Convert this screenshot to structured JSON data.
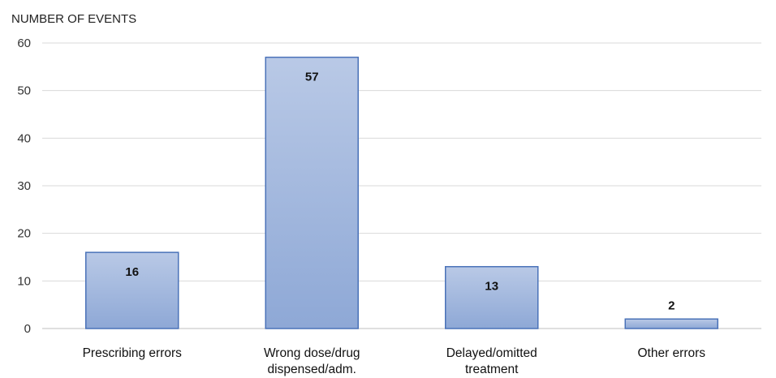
{
  "chart_data": {
    "type": "bar",
    "ylabel": "NUMBER OF EVENTS",
    "xlabel": "",
    "categories": [
      [
        "Prescribing errors"
      ],
      [
        "Wrong dose/drug",
        "dispensed/adm."
      ],
      [
        "Delayed/omitted",
        "treatment"
      ],
      [
        "Other errors"
      ]
    ],
    "values": [
      16,
      57,
      13,
      2
    ],
    "data_labels": [
      "16",
      "57",
      "13",
      "2"
    ],
    "ylim": [
      0,
      60
    ],
    "yticks": [
      "0",
      "10",
      "20",
      "30",
      "40",
      "50",
      "60"
    ],
    "grid": true,
    "colors": {
      "bar_fill_top": "#b9c9e6",
      "bar_fill_bottom": "#8ea8d6",
      "bar_stroke": "#4a72b8",
      "grid": "#d9d9d9",
      "axis": "#bfbfbf"
    }
  }
}
